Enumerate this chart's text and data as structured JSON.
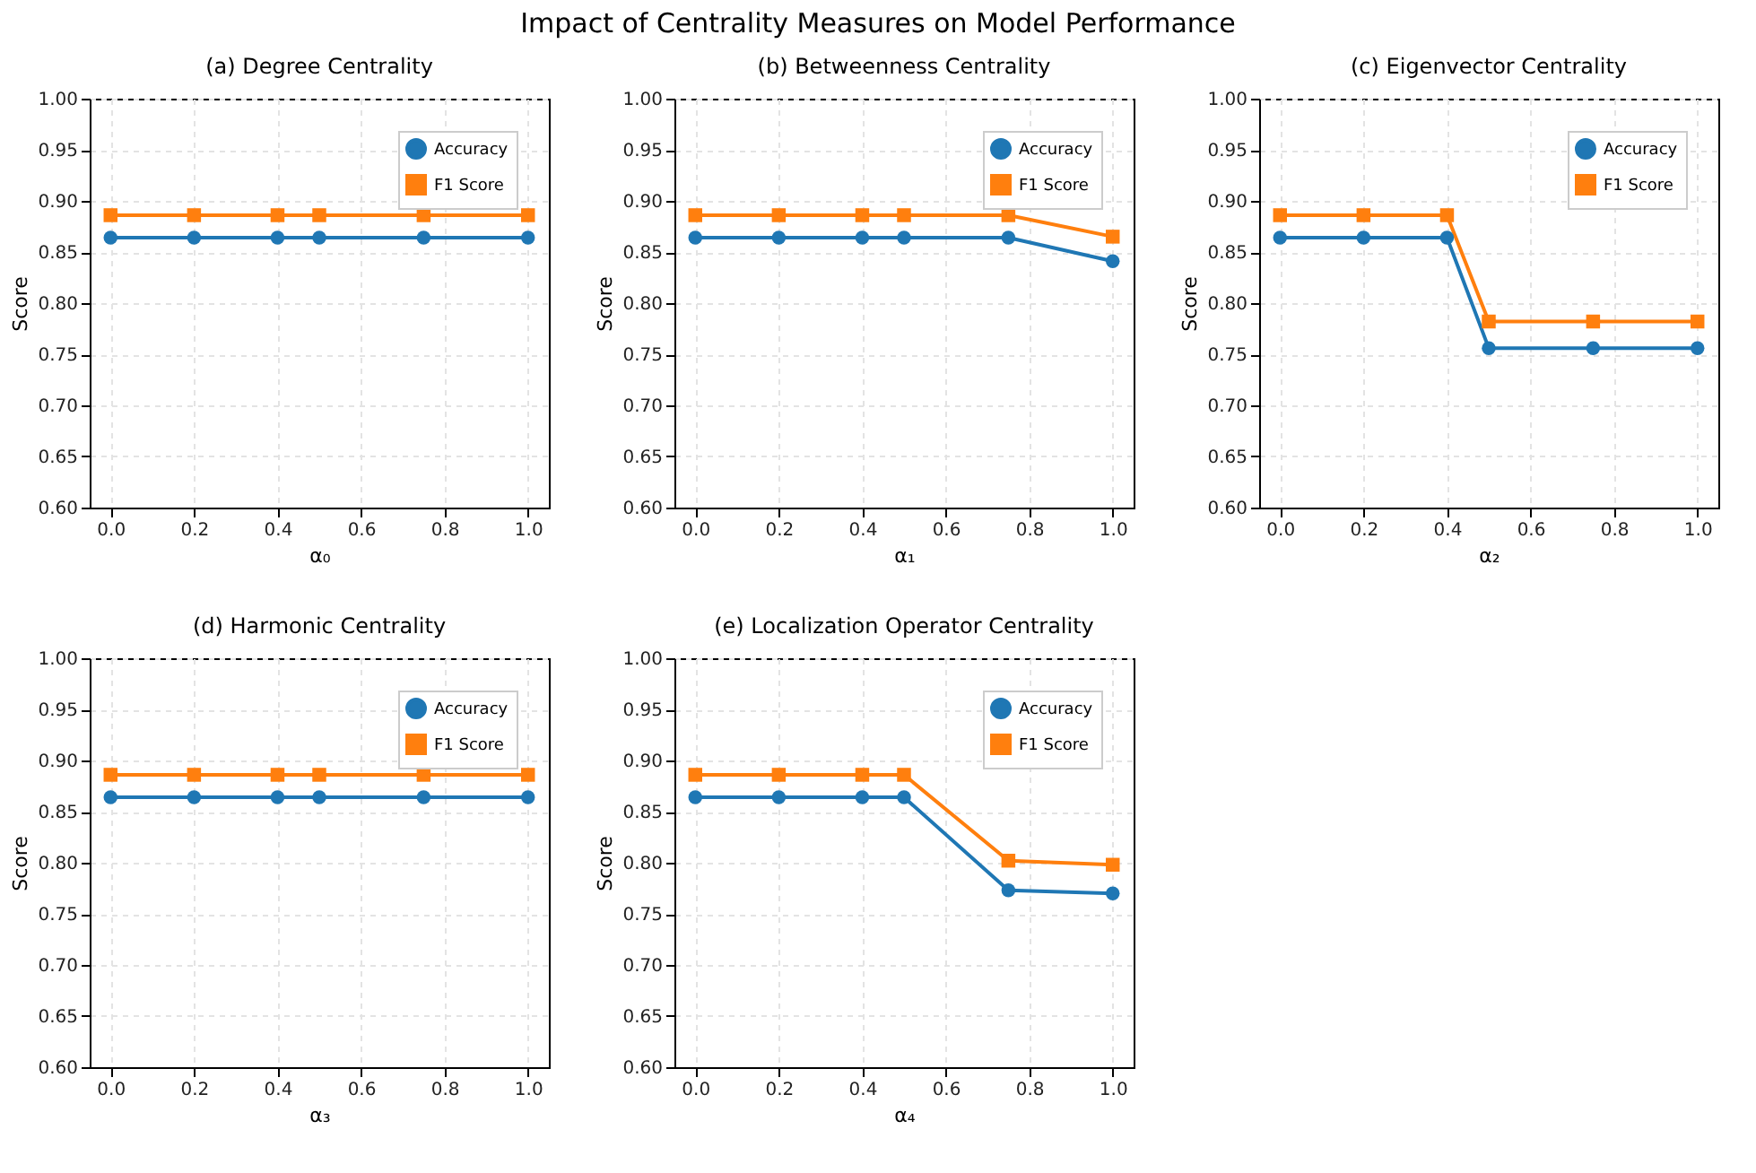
{
  "chart_data": [
    {
      "type": "line",
      "title": "(a) Degree Centrality",
      "annotations": [
        "Impact of Centrality Measures on Model Performance"
      ],
      "xlabel": "α₀",
      "ylabel": "Score",
      "x": [
        0,
        0.2,
        0.4,
        0.5,
        0.75,
        1.0
      ],
      "series": [
        {
          "name": "Accuracy",
          "color": "#1f77b4",
          "marker": "circle",
          "values": [
            0.864,
            0.864,
            0.864,
            0.864,
            0.864,
            0.864
          ]
        },
        {
          "name": "F1 Score",
          "color": "#ff7f0e",
          "marker": "square",
          "values": [
            0.886,
            0.886,
            0.886,
            0.886,
            0.886,
            0.886
          ]
        }
      ],
      "xlim": [
        -0.05,
        1.05
      ],
      "xticks": [
        {
          "value": 0,
          "label": "0.0"
        },
        {
          "value": 0.2,
          "label": "0.2"
        },
        {
          "value": 0.4,
          "label": "0.4"
        },
        {
          "value": 0.6,
          "label": "0.6"
        },
        {
          "value": 0.8,
          "label": "0.8"
        },
        {
          "value": 1,
          "label": "1.0"
        }
      ],
      "ylim": [
        0.6,
        1.0
      ],
      "yticks": [
        {
          "value": 0.6,
          "label": "0.60"
        },
        {
          "value": 0.65,
          "label": "0.65"
        },
        {
          "value": 0.7,
          "label": "0.70"
        },
        {
          "value": 0.75,
          "label": "0.75"
        },
        {
          "value": 0.8,
          "label": "0.80"
        },
        {
          "value": 0.85,
          "label": "0.85"
        },
        {
          "value": 0.9,
          "label": "0.90"
        },
        {
          "value": 0.95,
          "label": "0.95"
        },
        {
          "value": 1.0,
          "label": "1.00"
        }
      ],
      "grid": true,
      "legend": "top right",
      "line_style": "solid"
    },
    {
      "type": "line",
      "title": "(b) Betweenness Centrality",
      "xlabel": "α₁",
      "ylabel": "Score",
      "x": [
        0,
        0.2,
        0.4,
        0.5,
        0.75,
        1.0
      ],
      "series": [
        {
          "name": "Accuracy",
          "color": "#1f77b4",
          "marker": "circle",
          "values": [
            0.864,
            0.864,
            0.864,
            0.864,
            0.864,
            0.841
          ]
        },
        {
          "name": "F1 Score",
          "color": "#ff7f0e",
          "marker": "square",
          "values": [
            0.886,
            0.886,
            0.886,
            0.886,
            0.886,
            0.865
          ]
        }
      ],
      "xlim": [
        -0.05,
        1.05
      ],
      "xticks": [
        {
          "value": 0,
          "label": "0.0"
        },
        {
          "value": 0.2,
          "label": "0.2"
        },
        {
          "value": 0.4,
          "label": "0.4"
        },
        {
          "value": 0.6,
          "label": "0.6"
        },
        {
          "value": 0.8,
          "label": "0.8"
        },
        {
          "value": 1,
          "label": "1.0"
        }
      ],
      "ylim": [
        0.6,
        1.0
      ],
      "yticks": [
        {
          "value": 0.6,
          "label": "0.60"
        },
        {
          "value": 0.65,
          "label": "0.65"
        },
        {
          "value": 0.7,
          "label": "0.70"
        },
        {
          "value": 0.75,
          "label": "0.75"
        },
        {
          "value": 0.8,
          "label": "0.80"
        },
        {
          "value": 0.85,
          "label": "0.85"
        },
        {
          "value": 0.9,
          "label": "0.90"
        },
        {
          "value": 0.95,
          "label": "0.95"
        },
        {
          "value": 1.0,
          "label": "1.00"
        }
      ],
      "grid": true,
      "legend": "top right",
      "line_style": "solid"
    },
    {
      "type": "line",
      "title": "(c) Eigenvector Centrality",
      "xlabel": "α₂",
      "ylabel": "Score",
      "x": [
        0,
        0.2,
        0.4,
        0.5,
        0.75,
        1.0
      ],
      "series": [
        {
          "name": "Accuracy",
          "color": "#1f77b4",
          "marker": "circle",
          "values": [
            0.864,
            0.864,
            0.864,
            0.756,
            0.756,
            0.756
          ]
        },
        {
          "name": "F1 Score",
          "color": "#ff7f0e",
          "marker": "square",
          "values": [
            0.886,
            0.886,
            0.886,
            0.782,
            0.782,
            0.782
          ]
        }
      ],
      "xlim": [
        -0.05,
        1.05
      ],
      "xticks": [
        {
          "value": 0,
          "label": "0.0"
        },
        {
          "value": 0.2,
          "label": "0.2"
        },
        {
          "value": 0.4,
          "label": "0.4"
        },
        {
          "value": 0.6,
          "label": "0.6"
        },
        {
          "value": 0.8,
          "label": "0.8"
        },
        {
          "value": 1,
          "label": "1.0"
        }
      ],
      "ylim": [
        0.6,
        1.0
      ],
      "yticks": [
        {
          "value": 0.6,
          "label": "0.60"
        },
        {
          "value": 0.65,
          "label": "0.65"
        },
        {
          "value": 0.7,
          "label": "0.70"
        },
        {
          "value": 0.75,
          "label": "0.75"
        },
        {
          "value": 0.8,
          "label": "0.80"
        },
        {
          "value": 0.85,
          "label": "0.85"
        },
        {
          "value": 0.9,
          "label": "0.90"
        },
        {
          "value": 0.95,
          "label": "0.95"
        },
        {
          "value": 1.0,
          "label": "1.00"
        }
      ],
      "grid": true,
      "legend": "top right",
      "line_style": "solid"
    },
    {
      "type": "line",
      "title": "(d) Harmonic Centrality",
      "xlabel": "α₃",
      "ylabel": "Score",
      "x": [
        0,
        0.2,
        0.4,
        0.5,
        0.75,
        1.0
      ],
      "series": [
        {
          "name": "Accuracy",
          "color": "#1f77b4",
          "marker": "circle",
          "values": [
            0.864,
            0.864,
            0.864,
            0.864,
            0.864,
            0.864
          ]
        },
        {
          "name": "F1 Score",
          "color": "#ff7f0e",
          "marker": "square",
          "values": [
            0.886,
            0.886,
            0.886,
            0.886,
            0.886,
            0.886
          ]
        }
      ],
      "xlim": [
        -0.05,
        1.05
      ],
      "xticks": [
        {
          "value": 0,
          "label": "0.0"
        },
        {
          "value": 0.2,
          "label": "0.2"
        },
        {
          "value": 0.4,
          "label": "0.4"
        },
        {
          "value": 0.6,
          "label": "0.6"
        },
        {
          "value": 0.8,
          "label": "0.8"
        },
        {
          "value": 1,
          "label": "1.0"
        }
      ],
      "ylim": [
        0.6,
        1.0
      ],
      "yticks": [
        {
          "value": 0.6,
          "label": "0.60"
        },
        {
          "value": 0.65,
          "label": "0.65"
        },
        {
          "value": 0.7,
          "label": "0.70"
        },
        {
          "value": 0.75,
          "label": "0.75"
        },
        {
          "value": 0.8,
          "label": "0.80"
        },
        {
          "value": 0.85,
          "label": "0.85"
        },
        {
          "value": 0.9,
          "label": "0.90"
        },
        {
          "value": 0.95,
          "label": "0.95"
        },
        {
          "value": 1.0,
          "label": "1.00"
        }
      ],
      "grid": true,
      "legend": "top right",
      "line_style": "solid"
    },
    {
      "type": "line",
      "title": "(e) Localization Operator Centrality",
      "xlabel": "α₄",
      "ylabel": "Score",
      "x": [
        0,
        0.2,
        0.4,
        0.5,
        0.75,
        1.0
      ],
      "series": [
        {
          "name": "Accuracy",
          "color": "#1f77b4",
          "marker": "circle",
          "values": [
            0.864,
            0.864,
            0.864,
            0.864,
            0.773,
            0.77
          ]
        },
        {
          "name": "F1 Score",
          "color": "#ff7f0e",
          "marker": "square",
          "values": [
            0.886,
            0.886,
            0.886,
            0.886,
            0.802,
            0.798
          ]
        }
      ],
      "xlim": [
        -0.05,
        1.05
      ],
      "xticks": [
        {
          "value": 0,
          "label": "0.0"
        },
        {
          "value": 0.2,
          "label": "0.2"
        },
        {
          "value": 0.4,
          "label": "0.4"
        },
        {
          "value": 0.6,
          "label": "0.6"
        },
        {
          "value": 0.8,
          "label": "0.8"
        },
        {
          "value": 1,
          "label": "1.0"
        }
      ],
      "ylim": [
        0.6,
        1.0
      ],
      "yticks": [
        {
          "value": 0.6,
          "label": "0.60"
        },
        {
          "value": 0.65,
          "label": "0.65"
        },
        {
          "value": 0.7,
          "label": "0.70"
        },
        {
          "value": 0.75,
          "label": "0.75"
        },
        {
          "value": 0.8,
          "label": "0.80"
        },
        {
          "value": 0.85,
          "label": "0.85"
        },
        {
          "value": 0.9,
          "label": "0.90"
        },
        {
          "value": 0.95,
          "label": "0.95"
        },
        {
          "value": 1.0,
          "label": "1.00"
        }
      ],
      "grid": true,
      "legend": "top right",
      "line_style": "solid"
    }
  ]
}
